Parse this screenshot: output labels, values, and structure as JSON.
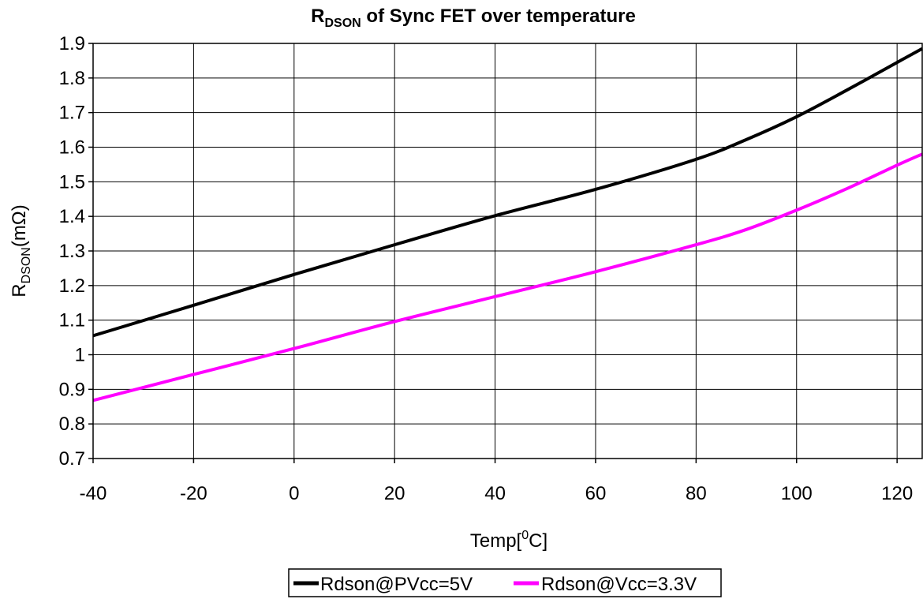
{
  "chart_data": {
    "type": "line",
    "title": {
      "main": "R",
      "sub": "DSON",
      "rest": " of Sync FET over temperature"
    },
    "xlabel": {
      "main": "Temp[",
      "sup": "0",
      "rest": "C]"
    },
    "ylabel": {
      "main": "R",
      "sub": "DSON",
      "rest": "(mΩ)"
    },
    "xlim": [
      -40,
      125
    ],
    "ylim": [
      0.7,
      1.9
    ],
    "x_ticks": [
      "-40",
      "-20",
      "0",
      "20",
      "40",
      "60",
      "80",
      "100",
      "120"
    ],
    "y_ticks": [
      "0.7",
      "0.8",
      "0.9",
      "1",
      "1.1",
      "1.2",
      "1.3",
      "1.4",
      "1.5",
      "1.6",
      "1.7",
      "1.8",
      "1.9"
    ],
    "grid": true,
    "legend_position": "bottom-center",
    "series": [
      {
        "name": "Rdson@PVcc=5V",
        "color": "#000000",
        "x": [
          -40,
          -20,
          0,
          20,
          40,
          60,
          80,
          90,
          100,
          110,
          120,
          125
        ],
        "y": [
          1.055,
          1.143,
          1.232,
          1.318,
          1.402,
          1.478,
          1.565,
          1.622,
          1.688,
          1.765,
          1.845,
          1.885
        ]
      },
      {
        "name": "Rdson@Vcc=3.3V",
        "color": "#ff00ff",
        "x": [
          -40,
          -20,
          0,
          20,
          40,
          60,
          80,
          90,
          100,
          110,
          120,
          125
        ],
        "y": [
          0.868,
          0.943,
          1.018,
          1.096,
          1.168,
          1.24,
          1.318,
          1.362,
          1.418,
          1.48,
          1.548,
          1.58
        ]
      }
    ]
  }
}
